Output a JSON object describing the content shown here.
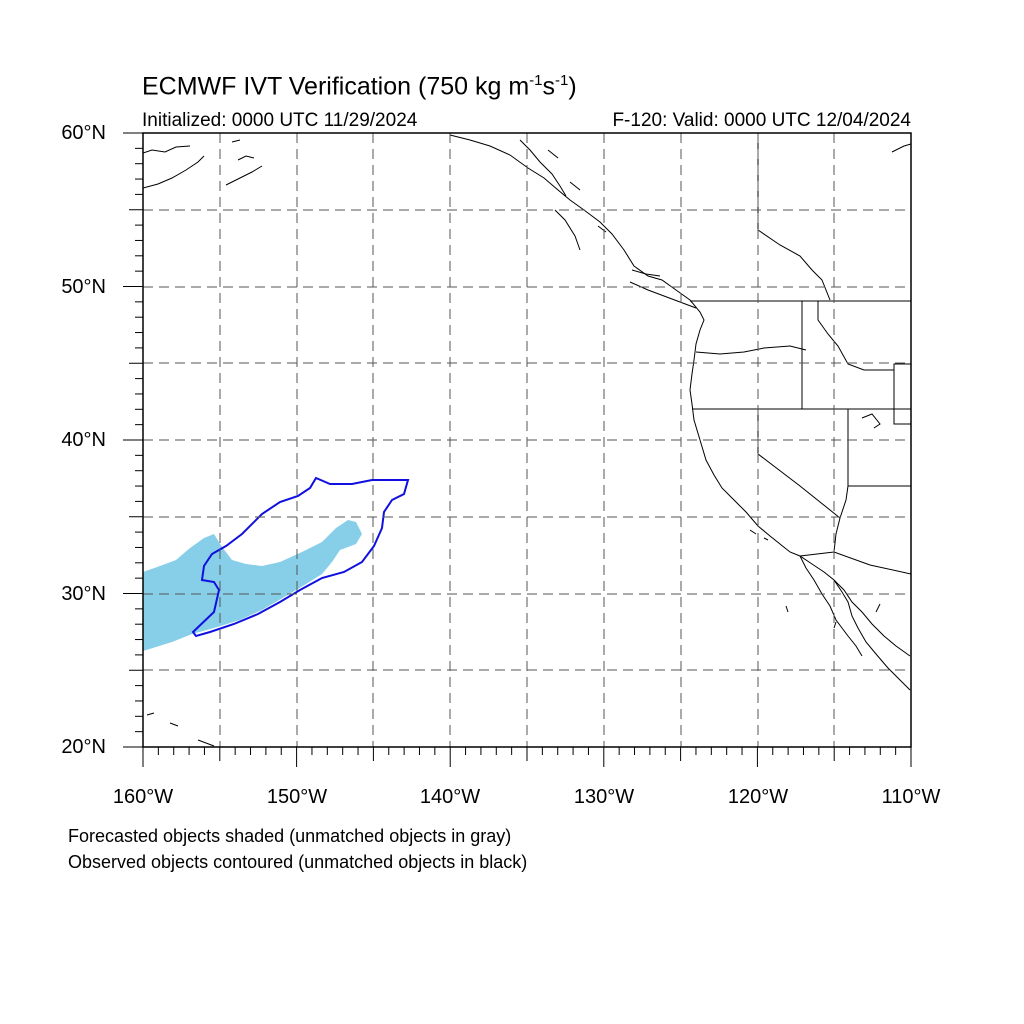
{
  "title": "ECMWF IVT Verification (750 kg m",
  "title_sup1": "-1",
  "title_mid": "s",
  "title_sup2": "-1",
  "title_end": ")",
  "initialized": "Initialized: 0000 UTC 11/29/2024",
  "valid": "F-120: Valid: 0000 UTC 12/04/2024",
  "footnote_1": "Forecasted objects shaded (unmatched objects in gray)",
  "footnote_2": "Observed objects contoured (unmatched objects in black)",
  "lat_labels": [
    "60°N",
    "50°N",
    "40°N",
    "30°N",
    "20°N"
  ],
  "lon_labels": [
    "160°W",
    "150°W",
    "140°W",
    "130°W",
    "120°W",
    "110°W"
  ],
  "extent": {
    "lon_min": -160,
    "lon_max": -110,
    "lat_min": 20,
    "lat_max": 60
  },
  "colors": {
    "forecast_fill": "#87CEE8",
    "observed_contour": "#1010E0",
    "coastline": "#000000",
    "grid": "#555555"
  }
}
